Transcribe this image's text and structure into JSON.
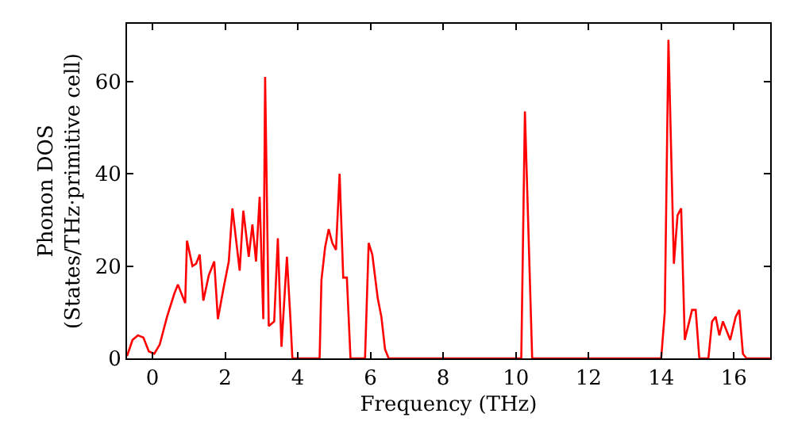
{
  "chart_data": {
    "type": "line",
    "xlabel": "Frequency (THz)",
    "ylabel": "Phonon DOS\n(States/THz·primitive cell)",
    "xlim": [
      -0.7,
      17.0
    ],
    "xticks": [
      0,
      2,
      4,
      6,
      8,
      10,
      12,
      14,
      16
    ],
    "ylim": [
      0,
      72.5
    ],
    "yticks": [
      0,
      20,
      40,
      60
    ],
    "marker": "none",
    "line_style": "solid",
    "series": [
      {
        "color": "#ff0000",
        "x": [
          -0.7,
          -0.55,
          -0.4,
          -0.25,
          -0.1,
          0.05,
          0.2,
          0.4,
          0.6,
          0.7,
          0.9,
          0.95,
          1.1,
          1.2,
          1.3,
          1.4,
          1.55,
          1.7,
          1.8,
          1.95,
          2.1,
          2.2,
          2.4,
          2.5,
          2.65,
          2.75,
          2.85,
          2.95,
          3.05,
          3.1,
          3.2,
          3.35,
          3.45,
          3.55,
          3.7,
          3.8,
          3.85,
          4.6,
          4.65,
          4.75,
          4.85,
          4.95,
          5.05,
          5.15,
          5.25,
          5.35,
          5.45,
          5.85,
          5.95,
          6.05,
          6.2,
          6.3,
          6.4,
          6.5,
          10.15,
          10.25,
          10.45,
          14.0,
          14.1,
          14.2,
          14.35,
          14.45,
          14.55,
          14.65,
          14.85,
          14.95,
          15.05,
          15.3,
          15.4,
          15.5,
          15.6,
          15.7,
          15.8,
          15.9,
          16.05,
          16.15,
          16.25,
          16.35,
          17.0
        ],
        "values": [
          0.5,
          4,
          5,
          4.5,
          1.5,
          1,
          3,
          9,
          14,
          16,
          12,
          25.5,
          20,
          20.5,
          22.5,
          12.5,
          18,
          21,
          8.5,
          15,
          21,
          32.5,
          19,
          32,
          22,
          29,
          21,
          35,
          8.5,
          61,
          7,
          8,
          26,
          2.5,
          22,
          8,
          0,
          0,
          17,
          24,
          28,
          25,
          23.5,
          40,
          17.5,
          17.5,
          0,
          0,
          25,
          22.5,
          13,
          9,
          2,
          0,
          0,
          53.5,
          0,
          0,
          10,
          69,
          20.5,
          31,
          32.5,
          4,
          10.5,
          10.5,
          0,
          0,
          8,
          9,
          5,
          8,
          6,
          4,
          9,
          10.5,
          1,
          0,
          0
        ]
      }
    ]
  }
}
